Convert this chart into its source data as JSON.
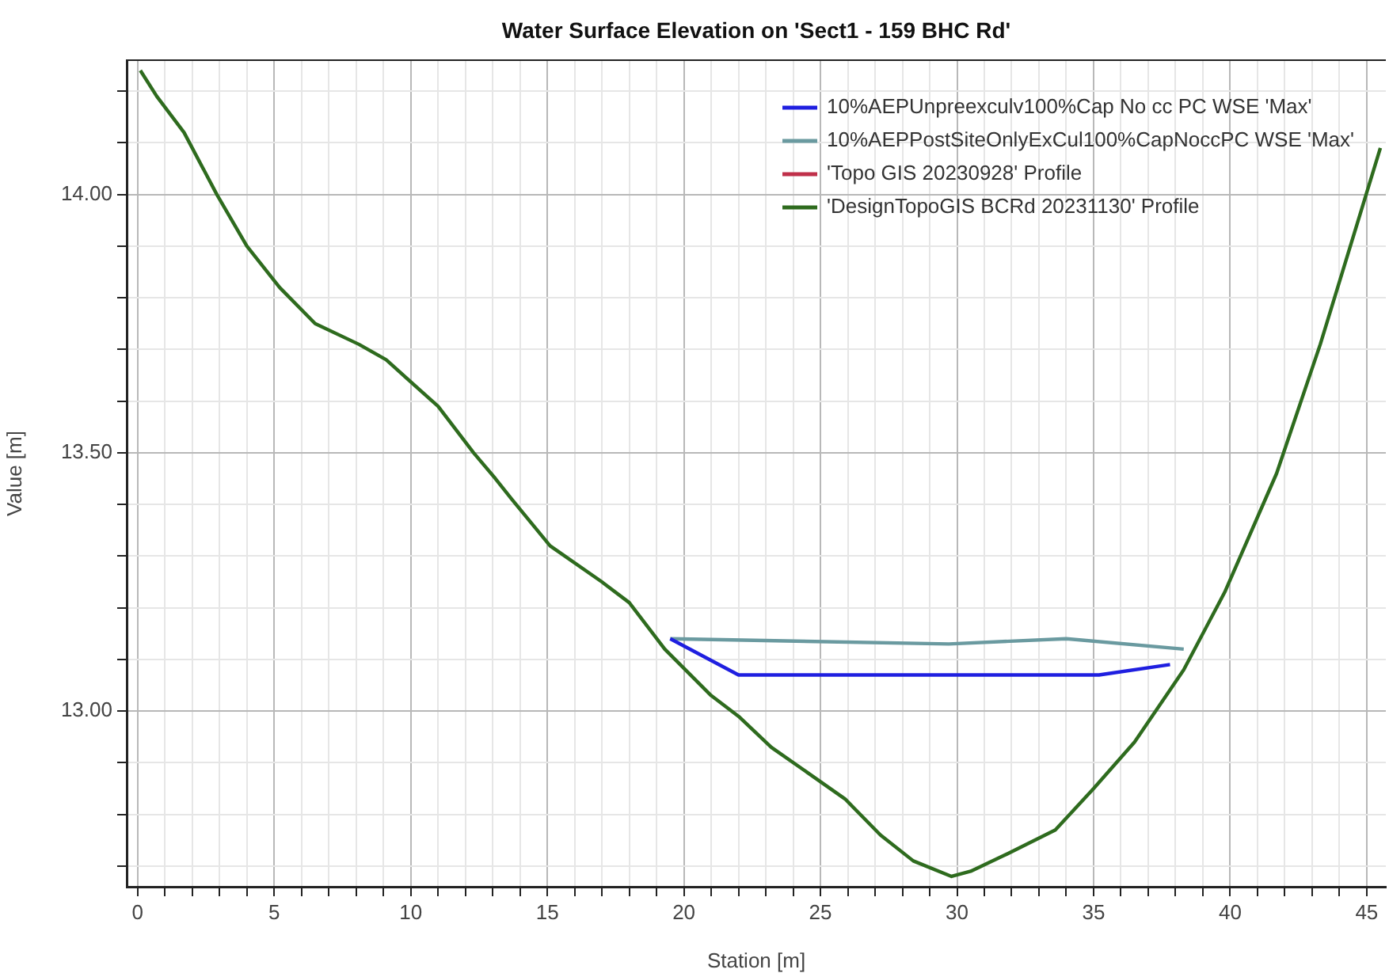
{
  "chart_data": {
    "type": "line",
    "title": "Water Surface Elevation on 'Sect1 - 159 BHC Rd'",
    "xlabel": "Station [m]",
    "ylabel": "Value [m]",
    "xlim": [
      -0.4,
      45.7
    ],
    "ylim": [
      12.66,
      14.26
    ],
    "xticks": [
      0,
      {
        "value": 1,
        "label": null
      },
      {
        "value": 2,
        "label": null
      },
      {
        "value": 3,
        "label": null
      },
      {
        "value": 4,
        "label": null
      },
      5,
      {
        "value": 6,
        "label": null
      },
      {
        "value": 7,
        "label": null
      },
      {
        "value": 8,
        "label": null
      },
      {
        "value": 9,
        "label": null
      },
      10,
      {
        "value": 11,
        "label": null
      },
      {
        "value": 12,
        "label": null
      },
      {
        "value": 13,
        "label": null
      },
      {
        "value": 14,
        "label": null
      },
      15,
      {
        "value": 16,
        "label": null
      },
      {
        "value": 17,
        "label": null
      },
      {
        "value": 18,
        "label": null
      },
      {
        "value": 19,
        "label": null
      },
      20,
      {
        "value": 21,
        "label": null
      },
      {
        "value": 22,
        "label": null
      },
      {
        "value": 23,
        "label": null
      },
      {
        "value": 24,
        "label": null
      },
      25,
      {
        "value": 26,
        "label": null
      },
      {
        "value": 27,
        "label": null
      },
      {
        "value": 28,
        "label": null
      },
      {
        "value": 29,
        "label": null
      },
      30,
      {
        "value": 31,
        "label": null
      },
      {
        "value": 32,
        "label": null
      },
      {
        "value": 33,
        "label": null
      },
      {
        "value": 34,
        "label": null
      },
      35,
      {
        "value": 36,
        "label": null
      },
      {
        "value": 37,
        "label": null
      },
      {
        "value": 38,
        "label": null
      },
      {
        "value": 39,
        "label": null
      },
      40,
      {
        "value": 41,
        "label": null
      },
      {
        "value": 42,
        "label": null
      },
      {
        "value": 43,
        "label": null
      },
      {
        "value": 44,
        "label": null
      },
      45
    ],
    "yticks": [
      {
        "value": 12.7,
        "label": null
      },
      {
        "value": 12.8,
        "label": null
      },
      {
        "value": 12.9,
        "label": null
      },
      {
        "value": 13,
        "label": "13.00"
      },
      {
        "value": 13.1,
        "label": null
      },
      {
        "value": 13.2,
        "label": null
      },
      {
        "value": 13.3,
        "label": null
      },
      {
        "value": 13.4,
        "label": null
      },
      {
        "value": 13.5,
        "label": "13.50"
      },
      {
        "value": 13.6,
        "label": null
      },
      {
        "value": 13.7,
        "label": null
      },
      {
        "value": 13.8,
        "label": null
      },
      {
        "value": 13.9,
        "label": null
      },
      {
        "value": 14,
        "label": "14.00"
      },
      {
        "value": 14.1,
        "label": null
      },
      {
        "value": 14.2,
        "label": null
      }
    ],
    "grid": true,
    "legend": "top right",
    "marker": "none",
    "line_style": "solid",
    "series": [
      {
        "name": "10%AEPUnpreexculv100%Cap No cc PC WSE 'Max'",
        "color": "#1f1fe0",
        "x": [
          19.5,
          22.0,
          29.7,
          35.2,
          37.8
        ],
        "values": [
          13.14,
          13.07,
          13.07,
          13.07,
          13.09
        ]
      },
      {
        "name": "10%AEPPostSiteOnlyExCul100%CapNoccPC WSE 'Max'",
        "color": "#6a9aa0",
        "x": [
          19.5,
          29.7,
          34.0,
          38.3
        ],
        "values": [
          13.14,
          13.13,
          13.14,
          13.12
        ]
      },
      {
        "name": "'Topo GIS 20230928' Profile",
        "color": "#c0304a"
      },
      {
        "name": "'DesignTopoGIS BCRd 20231130' Profile",
        "color": "#2e6b1e",
        "x": [
          0.1,
          0.7,
          1.7,
          2.9,
          4.0,
          5.2,
          6.5,
          8.1,
          9.1,
          11.0,
          12.3,
          13.1,
          13.7,
          15.1,
          17.0,
          18.0,
          19.3,
          21.0,
          22.0,
          23.2,
          25.9,
          27.2,
          28.4,
          29.8,
          30.5,
          31.7,
          33.6,
          35.0,
          36.5,
          38.3,
          39.8,
          41.7,
          43.3,
          45.5
        ],
        "values": [
          14.24,
          14.19,
          14.12,
          14.0,
          13.9,
          13.82,
          13.75,
          13.71,
          13.68,
          13.59,
          13.5,
          13.45,
          13.41,
          13.32,
          13.25,
          13.21,
          13.12,
          13.03,
          12.99,
          12.93,
          12.83,
          12.76,
          12.71,
          12.68,
          12.69,
          12.72,
          12.77,
          12.85,
          12.94,
          13.08,
          13.23,
          13.46,
          13.71,
          14.09
        ]
      }
    ]
  }
}
